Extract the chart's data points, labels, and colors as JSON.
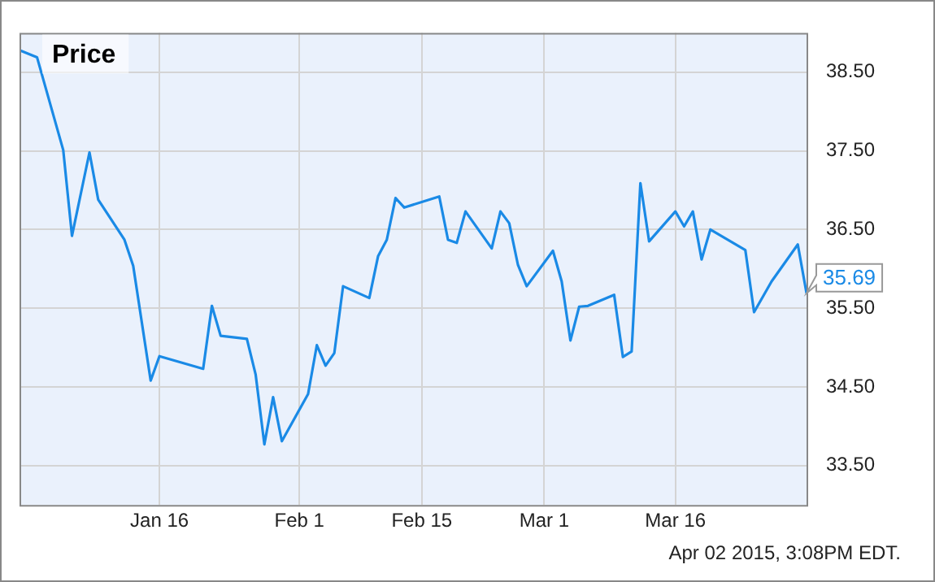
{
  "chart_data": {
    "type": "line",
    "title": "Price",
    "x": [
      "2014-12-31",
      "2015-01-02",
      "2015-01-05",
      "2015-01-06",
      "2015-01-08",
      "2015-01-09",
      "2015-01-12",
      "2015-01-13",
      "2015-01-15",
      "2015-01-16",
      "2015-01-21",
      "2015-01-22",
      "2015-01-23",
      "2015-01-26",
      "2015-01-27",
      "2015-01-28",
      "2015-01-29",
      "2015-01-30",
      "2015-02-02",
      "2015-02-03",
      "2015-02-04",
      "2015-02-05",
      "2015-02-06",
      "2015-02-09",
      "2015-02-10",
      "2015-02-11",
      "2015-02-12",
      "2015-02-13",
      "2015-02-17",
      "2015-02-18",
      "2015-02-19",
      "2015-02-20",
      "2015-02-23",
      "2015-02-24",
      "2015-02-25",
      "2015-02-26",
      "2015-02-27",
      "2015-03-02",
      "2015-03-03",
      "2015-03-04",
      "2015-03-05",
      "2015-03-06",
      "2015-03-09",
      "2015-03-10",
      "2015-03-11",
      "2015-03-12",
      "2015-03-13",
      "2015-03-16",
      "2015-03-17",
      "2015-03-18",
      "2015-03-19",
      "2015-03-20",
      "2015-03-24",
      "2015-03-25",
      "2015-03-27",
      "2015-03-30",
      "2015-03-31"
    ],
    "series": [
      {
        "color": "#1a8ae6",
        "values": [
          38.78,
          38.69,
          37.51,
          36.42,
          37.48,
          36.88,
          36.37,
          36.04,
          34.58,
          34.89,
          34.73,
          35.53,
          35.15,
          35.11,
          34.66,
          33.77,
          34.37,
          33.81,
          34.41,
          35.03,
          34.77,
          34.93,
          35.78,
          35.63,
          36.16,
          36.37,
          36.9,
          36.78,
          36.92,
          36.37,
          36.33,
          36.73,
          36.26,
          36.73,
          36.58,
          36.05,
          35.78,
          36.23,
          35.84,
          35.09,
          35.52,
          35.53,
          35.67,
          34.88,
          34.95,
          37.09,
          36.35,
          36.73,
          36.54,
          36.73,
          36.12,
          36.5,
          36.24,
          35.45,
          35.84,
          36.31,
          35.69
        ]
      }
    ],
    "xlim": [
      "2014-12-31",
      "2015-03-31"
    ],
    "xticks": [
      {
        "value": "2015-01-16",
        "label": "Jan 16"
      },
      {
        "value": "2015-02-01",
        "label": "Feb 1"
      },
      {
        "value": "2015-02-15",
        "label": "Feb 15"
      },
      {
        "value": "2015-03-01",
        "label": "Mar 1"
      },
      {
        "value": "2015-03-16",
        "label": "Mar 16"
      }
    ],
    "ylim": [
      33,
      39
    ],
    "yticks": [
      {
        "value": 33.5,
        "label": "33.50"
      },
      {
        "value": 34.5,
        "label": "34.50"
      },
      {
        "value": 35.5,
        "label": "35.50"
      },
      {
        "value": 36.5,
        "label": "36.50"
      },
      {
        "value": 37.5,
        "label": "37.50"
      },
      {
        "value": 38.5,
        "label": "38.50"
      }
    ],
    "grid": true,
    "legend": false,
    "marker": "none",
    "line_style": "solid",
    "annotations": [
      {
        "text": "35.69",
        "x": "2015-03-31",
        "y": 35.69
      },
      "Apr 02 2015, 3:08PM EDT."
    ]
  }
}
